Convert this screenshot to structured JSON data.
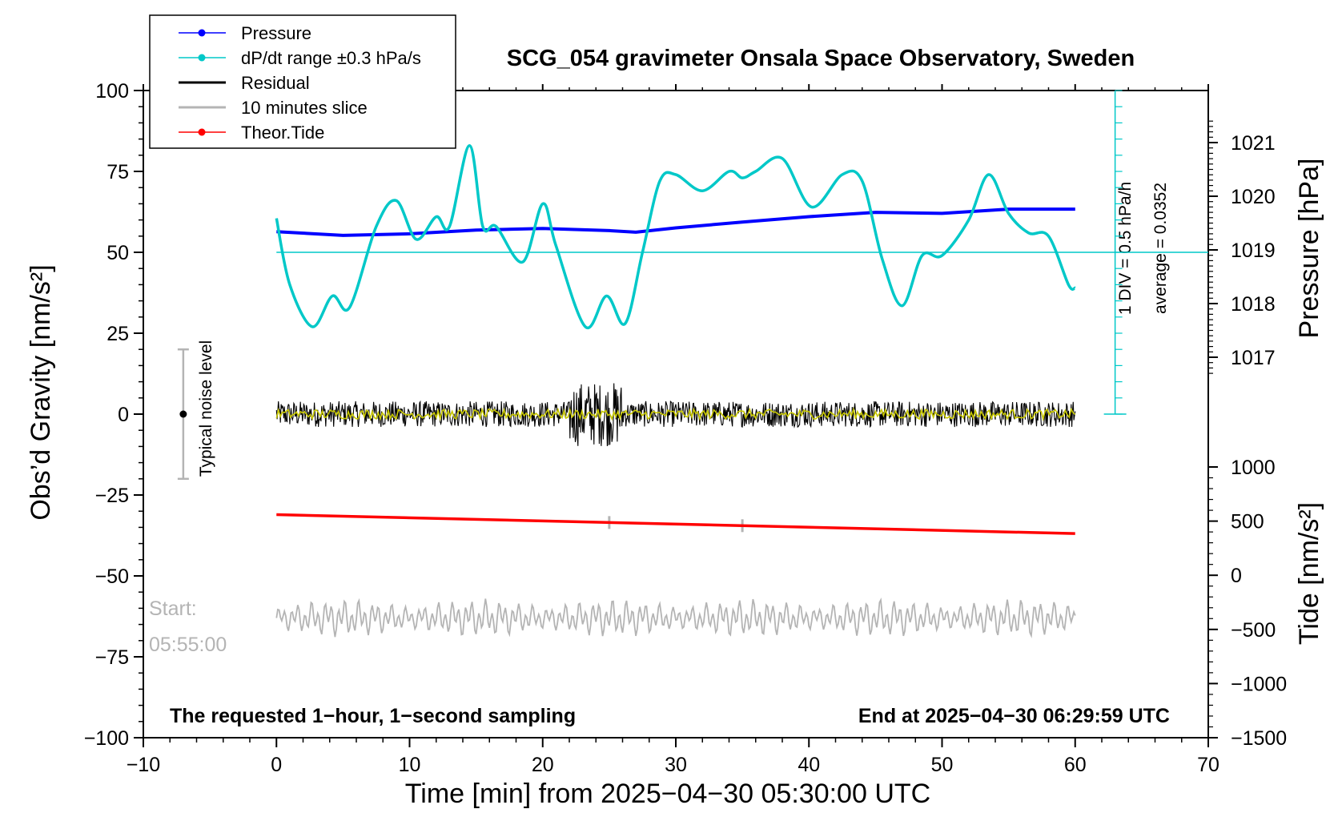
{
  "chart_data": {
    "type": "line",
    "title": "SCG_054 gravimeter Onsala Space Observatory, Sweden",
    "xlabel": "Time [min] from 2025−04−30 05:30:00 UTC",
    "ylabel_left": "Obs’d Gravity [nm/s²]",
    "ylabel_right_pressure": "Pressure [hPa]",
    "ylabel_right_tide": "Tide [nm/s²]",
    "xlim": [
      -10,
      70
    ],
    "ylim": [
      -100,
      100
    ],
    "x_ticks": [
      "−10",
      "0",
      "10",
      "20",
      "30",
      "40",
      "50",
      "60",
      "70"
    ],
    "y_ticks_left": [
      "−100",
      "−75",
      "−50",
      "−25",
      "0",
      "25",
      "50",
      "75",
      "100"
    ],
    "pressure_axis": {
      "range": [
        1016,
        1022
      ],
      "ticks": [
        "1017",
        "1018",
        "1019",
        "1020",
        "1021"
      ]
    },
    "tide_axis": {
      "range": [
        -1500,
        1500
      ],
      "ticks": [
        "−1500",
        "−1000",
        "−500",
        "0",
        "500",
        "1000"
      ]
    },
    "dpdt_annotation": {
      "div_label": "1 DIV = 0.5 hPa/h",
      "average_label": "average = 0.0352",
      "average_value": 0.0352
    },
    "footer_left": "The requested 1−hour, 1−second sampling",
    "footer_right": "End at 2025−04−30 06:29:59 UTC",
    "slice_start_label": "Start:",
    "slice_start_time": "05:55:00",
    "noise_label": "Typical noise level",
    "legend": [
      {
        "label": "Pressure",
        "color": "#0000ff",
        "marker": true
      },
      {
        "label": "dP/dt range ±0.3 hPa/s",
        "color": "#00c8c8",
        "marker": true
      },
      {
        "label": "Residual",
        "color": "#000000",
        "marker": false
      },
      {
        "label": "10 minutes slice",
        "color": "#b4b4b4",
        "marker": false
      },
      {
        "label": "Theor.Tide",
        "color": "#ff0000",
        "marker": true
      }
    ],
    "series": [
      {
        "name": "Pressure",
        "axis": "pressure_hPa",
        "color": "#0000ff",
        "x": [
          0,
          5,
          10,
          15,
          20,
          25,
          27,
          30,
          35,
          40,
          45,
          50,
          55,
          60
        ],
        "y": [
          1019.34,
          1019.27,
          1019.3,
          1019.37,
          1019.4,
          1019.36,
          1019.33,
          1019.41,
          1019.52,
          1019.62,
          1019.7,
          1019.68,
          1019.76,
          1019.76
        ]
      },
      {
        "name": "dP/dt range ±0.3 hPa/s",
        "axis": "gravity_nm_s2",
        "color": "#00c8c8",
        "x": [
          0,
          1,
          2.7,
          4.2,
          5.5,
          7.5,
          9,
          10.5,
          12,
          13,
          14.5,
          15.5,
          16.5,
          18.5,
          20,
          21,
          23.2,
          24.8,
          26.2,
          27.5,
          28.8,
          30,
          32,
          34,
          35,
          36,
          38,
          40.2,
          42.5,
          44,
          45.5,
          47,
          48.5,
          50,
          52,
          53.5,
          55,
          56.5,
          58,
          59.5,
          60
        ],
        "y": [
          60.5,
          40,
          27,
          36.5,
          33,
          58,
          66,
          54,
          61,
          58,
          83,
          58,
          58,
          47,
          65,
          52,
          27,
          36.5,
          28,
          50,
          72,
          74,
          69,
          75,
          73,
          75,
          79,
          64,
          74,
          72,
          48,
          33.5,
          49,
          49,
          60,
          74,
          62,
          56,
          55,
          40,
          39
        ]
      },
      {
        "name": "Residual",
        "axis": "gravity_nm_s2",
        "color": "#000000",
        "x_range": [
          0,
          60
        ],
        "center": 0,
        "amplitude": 4,
        "burst_x": [
          22,
          26
        ],
        "burst_amplitude": 10
      },
      {
        "name": "Residual (smoothed)",
        "axis": "gravity_nm_s2",
        "color": "#c8c800",
        "x_range": [
          0,
          60
        ],
        "center": 0,
        "amplitude": 1.5
      },
      {
        "name": "Theor.Tide",
        "axis": "tide_nm_s2",
        "color": "#ff0000",
        "x": [
          0,
          60
        ],
        "y": [
          560,
          385
        ]
      },
      {
        "name": "10 minutes slice",
        "axis": "gravity_nm_s2",
        "color": "#b4b4b4",
        "x_range": [
          0,
          60
        ],
        "center": -63,
        "amplitude": 6,
        "window_marks_x": [
          25,
          35
        ]
      }
    ],
    "noise_bar": {
      "x": -7,
      "center": 0,
      "low": -20,
      "high": 20
    },
    "grid": false,
    "legend_placement": "top-left"
  }
}
